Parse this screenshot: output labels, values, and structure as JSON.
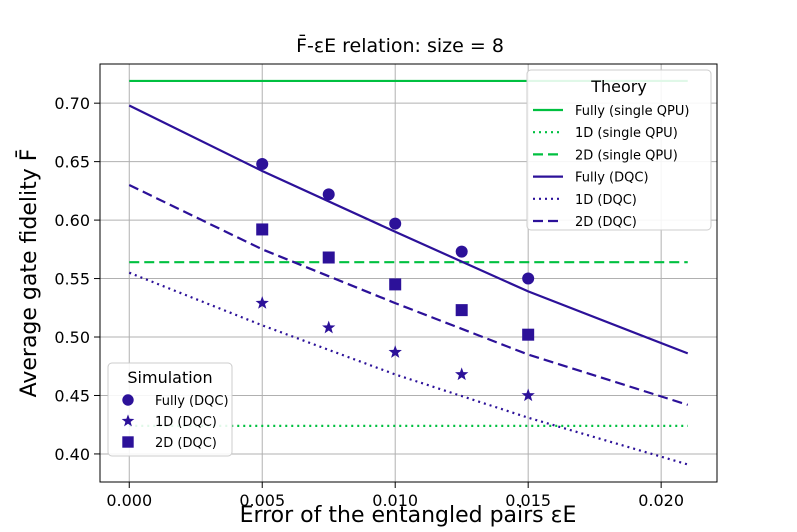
{
  "chart_data": {
    "type": "line",
    "title": "F̄-εE relation: size = 8",
    "xlabel": "Error of the entangled pairs εE",
    "ylabel": "Average gate fidelity F̄",
    "xlim": [
      -0.0011,
      0.0221
    ],
    "ylim": [
      0.376,
      0.7335
    ],
    "xticks": [
      {
        "value": 0.0,
        "label": "0.000"
      },
      {
        "value": 0.005,
        "label": "0.005"
      },
      {
        "value": 0.01,
        "label": "0.010"
      },
      {
        "value": 0.015,
        "label": "0.015"
      },
      {
        "value": 0.02,
        "label": "0.020"
      }
    ],
    "yticks": [
      {
        "value": 0.4,
        "label": "0.40"
      },
      {
        "value": 0.45,
        "label": "0.45"
      },
      {
        "value": 0.5,
        "label": "0.50"
      },
      {
        "value": 0.55,
        "label": "0.55"
      },
      {
        "value": 0.6,
        "label": "0.60"
      },
      {
        "value": 0.65,
        "label": "0.65"
      },
      {
        "value": 0.7,
        "label": "0.70"
      }
    ],
    "grid": true,
    "theory_legend": {
      "title": "Theory",
      "placement": "top-right",
      "items": [
        {
          "label": "Fully (single QPU)",
          "color": "#00c040",
          "dash": "solid"
        },
        {
          "label": "1D (single QPU)",
          "color": "#00c040",
          "dash": "dotted"
        },
        {
          "label": "2D (single QPU)",
          "color": "#00c040",
          "dash": "dashed"
        },
        {
          "label": "Fully (DQC)",
          "color": "#2c1199",
          "dash": "solid"
        },
        {
          "label": "1D (DQC)",
          "color": "#2c1199",
          "dash": "dotted"
        },
        {
          "label": "2D (DQC)",
          "color": "#2c1199",
          "dash": "dashed"
        }
      ]
    },
    "simulation_legend": {
      "title": "Simulation",
      "placement": "bottom-left",
      "items": [
        {
          "label": "Fully (DQC)",
          "marker": "circle"
        },
        {
          "label": "1D (DQC)",
          "marker": "star"
        },
        {
          "label": "2D (DQC)",
          "marker": "square"
        }
      ]
    },
    "theory_series": [
      {
        "id": "fully-single",
        "color": "#00c040",
        "dash": "solid",
        "points": [
          [
            0.0,
            0.719
          ],
          [
            0.021,
            0.719
          ]
        ]
      },
      {
        "id": "1d-single",
        "color": "#00c040",
        "dash": "dotted",
        "points": [
          [
            0.0,
            0.424
          ],
          [
            0.021,
            0.424
          ]
        ]
      },
      {
        "id": "2d-single",
        "color": "#00c040",
        "dash": "dashed",
        "points": [
          [
            0.0,
            0.564
          ],
          [
            0.021,
            0.564
          ]
        ]
      },
      {
        "id": "fully-dqc",
        "color": "#2c1199",
        "dash": "solid",
        "points": [
          [
            0.0,
            0.698
          ],
          [
            0.005,
            0.642
          ],
          [
            0.01,
            0.59
          ],
          [
            0.015,
            0.539
          ],
          [
            0.021,
            0.486
          ]
        ]
      },
      {
        "id": "1d-dqc",
        "color": "#2c1199",
        "dash": "dotted",
        "points": [
          [
            0.0,
            0.555
          ],
          [
            0.005,
            0.51
          ],
          [
            0.01,
            0.468
          ],
          [
            0.015,
            0.431
          ],
          [
            0.021,
            0.391
          ]
        ]
      },
      {
        "id": "2d-dqc",
        "color": "#2c1199",
        "dash": "dashed",
        "points": [
          [
            0.0,
            0.63
          ],
          [
            0.005,
            0.575
          ],
          [
            0.01,
            0.529
          ],
          [
            0.015,
            0.485
          ],
          [
            0.021,
            0.442
          ]
        ]
      }
    ],
    "simulation_series": [
      {
        "id": "fully-dqc-sim",
        "marker": "circle",
        "color": "#2c1199",
        "x": [
          0.005,
          0.0075,
          0.01,
          0.0125,
          0.015
        ],
        "y": [
          0.648,
          0.622,
          0.597,
          0.573,
          0.55
        ]
      },
      {
        "id": "1d-dqc-sim",
        "marker": "star",
        "color": "#2c1199",
        "x": [
          0.005,
          0.0075,
          0.01,
          0.0125,
          0.015
        ],
        "y": [
          0.529,
          0.508,
          0.487,
          0.468,
          0.45
        ]
      },
      {
        "id": "2d-dqc-sim",
        "marker": "square",
        "color": "#2c1199",
        "x": [
          0.005,
          0.0075,
          0.01,
          0.0125,
          0.015
        ],
        "y": [
          0.592,
          0.568,
          0.545,
          0.523,
          0.502
        ]
      }
    ]
  }
}
